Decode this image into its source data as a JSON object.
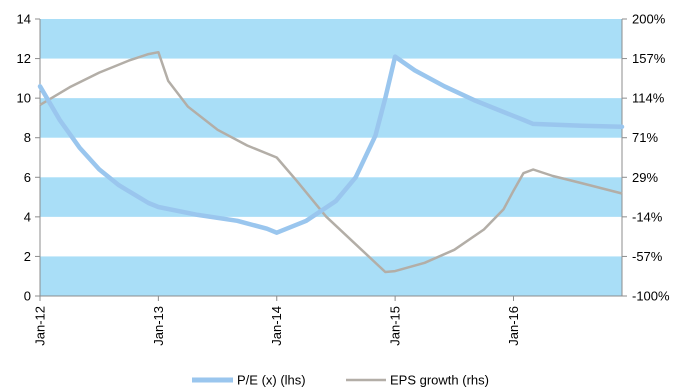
{
  "chart_data": {
    "type": "line",
    "x_ticks": [
      "Jan-12",
      "Jan-13",
      "Jan-14",
      "Jan-15",
      "Jan-16"
    ],
    "left_axis": {
      "min": 0,
      "max": 14,
      "ticks": [
        "0",
        "2",
        "4",
        "6",
        "8",
        "10",
        "12",
        "14"
      ]
    },
    "right_axis": {
      "min": -100,
      "max": 200,
      "ticks": [
        "-100%",
        "-57%",
        "-14%",
        "29%",
        "71%",
        "114%",
        "157%",
        "200%"
      ]
    },
    "x_range": [
      0,
      59
    ],
    "bands": [
      [
        0,
        2
      ],
      [
        4,
        6
      ],
      [
        8,
        10
      ],
      [
        12,
        14
      ]
    ],
    "colors": {
      "band": "#a9def7",
      "pe": "#9ac6ee",
      "eps": "#b3aea7"
    },
    "series": [
      {
        "name": "P/E (x) (lhs)",
        "axis": "left",
        "points": [
          [
            0,
            10.6
          ],
          [
            2,
            8.9
          ],
          [
            4,
            7.5
          ],
          [
            6,
            6.4
          ],
          [
            8,
            5.6
          ],
          [
            10,
            5.0
          ],
          [
            11,
            4.7
          ],
          [
            12,
            4.5
          ],
          [
            16,
            4.1
          ],
          [
            20,
            3.8
          ],
          [
            23,
            3.4
          ],
          [
            24,
            3.2
          ],
          [
            27,
            3.8
          ],
          [
            30,
            4.8
          ],
          [
            32,
            6.0
          ],
          [
            34,
            8.1
          ],
          [
            35,
            10.0
          ],
          [
            36,
            12.1
          ],
          [
            38,
            11.4
          ],
          [
            41,
            10.6
          ],
          [
            44,
            9.9
          ],
          [
            47,
            9.3
          ],
          [
            49,
            8.9
          ],
          [
            50,
            8.7
          ],
          [
            55,
            8.6
          ],
          [
            59,
            8.55
          ]
        ]
      },
      {
        "name": "EPS growth (rhs)",
        "axis": "right",
        "points": [
          [
            0,
            107
          ],
          [
            3,
            126
          ],
          [
            6,
            142
          ],
          [
            9,
            155
          ],
          [
            11,
            162
          ],
          [
            12,
            164
          ],
          [
            13,
            133
          ],
          [
            15,
            105
          ],
          [
            18,
            80
          ],
          [
            21,
            63
          ],
          [
            24,
            50
          ],
          [
            26,
            25
          ],
          [
            29,
            -14
          ],
          [
            32,
            -44
          ],
          [
            35,
            -74
          ],
          [
            36,
            -73
          ],
          [
            39,
            -64
          ],
          [
            42,
            -50
          ],
          [
            45,
            -28
          ],
          [
            47,
            -6
          ],
          [
            48,
            14
          ],
          [
            49,
            33
          ],
          [
            50,
            37
          ],
          [
            52,
            30
          ],
          [
            55,
            22
          ],
          [
            59,
            11
          ]
        ]
      }
    ]
  }
}
